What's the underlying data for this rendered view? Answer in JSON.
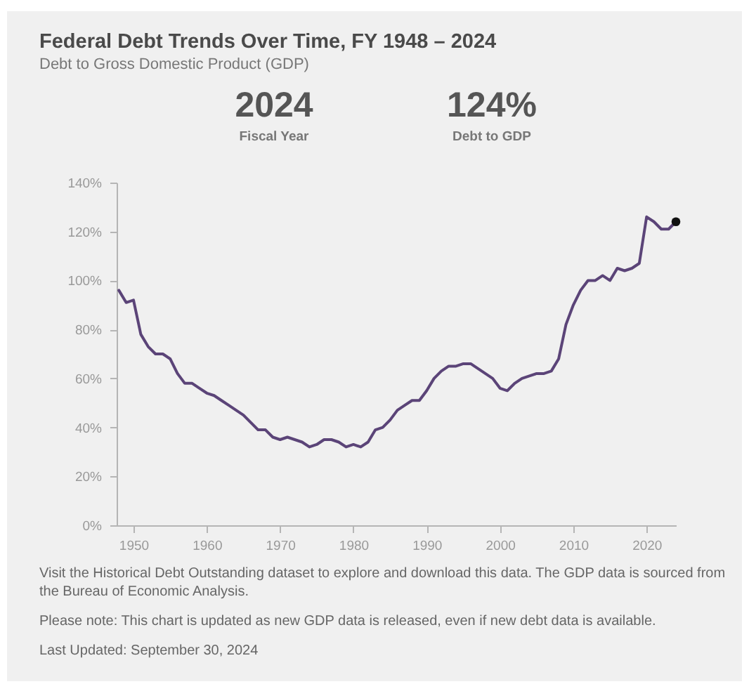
{
  "chart_data": {
    "type": "line",
    "title": "Federal Debt Trends Over Time, FY 1948 – 2024",
    "subtitle": "Debt to Gross Domestic Product (GDP)",
    "annotations": [
      "2024",
      "Fiscal Year",
      "124%",
      "Debt to GDP",
      "Visit the Historical Debt Outstanding dataset to explore and download this data. The GDP data is sourced from the Bureau of Economic Analysis.",
      "Please note: This chart is updated as new GDP data is released, even if new debt data is available.",
      "Last Updated: September 30, 2024"
    ],
    "x": [
      1948,
      1949,
      1950,
      1951,
      1952,
      1953,
      1954,
      1955,
      1956,
      1957,
      1958,
      1959,
      1960,
      1961,
      1962,
      1963,
      1964,
      1965,
      1966,
      1967,
      1968,
      1969,
      1970,
      1971,
      1972,
      1973,
      1974,
      1975,
      1976,
      1977,
      1978,
      1979,
      1980,
      1981,
      1982,
      1983,
      1984,
      1985,
      1986,
      1987,
      1988,
      1989,
      1990,
      1991,
      1992,
      1993,
      1994,
      1995,
      1996,
      1997,
      1998,
      1999,
      2000,
      2001,
      2002,
      2003,
      2004,
      2005,
      2006,
      2007,
      2008,
      2009,
      2010,
      2011,
      2012,
      2013,
      2014,
      2015,
      2016,
      2017,
      2018,
      2019,
      2020,
      2021,
      2022,
      2023,
      2024
    ],
    "series": [
      {
        "color": "#5b4478",
        "values": [
          96,
          91,
          92,
          78,
          73,
          70,
          70,
          68,
          62,
          58,
          58,
          56,
          54,
          53,
          51,
          49,
          47,
          45,
          42,
          39,
          39,
          36,
          35,
          36,
          35,
          34,
          32,
          33,
          35,
          35,
          34,
          32,
          33,
          32,
          34,
          39,
          40,
          43,
          47,
          49,
          51,
          51,
          55,
          60,
          63,
          65,
          65,
          66,
          66,
          64,
          62,
          60,
          56,
          55,
          58,
          60,
          61,
          62,
          62,
          63,
          68,
          82,
          90,
          96,
          100,
          100,
          102,
          100,
          105,
          104,
          105,
          107,
          126,
          124,
          121,
          121,
          124
        ]
      },
      {
        "type": "scatter",
        "marker": "circle",
        "color": "#111111",
        "x": [
          2024
        ],
        "values": [
          124
        ]
      }
    ],
    "xlim": [
      1947.7,
      2024
    ],
    "xticks": [
      1950,
      1960,
      1970,
      1980,
      1990,
      2000,
      2010,
      2020
    ],
    "ylim": [
      0,
      140
    ],
    "yticks": [
      {
        "value": 0,
        "label": "0%"
      },
      {
        "value": 20,
        "label": "20%"
      },
      {
        "value": 40,
        "label": "40%"
      },
      {
        "value": 60,
        "label": "60%"
      },
      {
        "value": 80,
        "label": "80%"
      },
      {
        "value": 100,
        "label": "100%"
      },
      {
        "value": 120,
        "label": "120%"
      },
      {
        "value": 140,
        "label": "140%"
      }
    ],
    "grid": false
  }
}
